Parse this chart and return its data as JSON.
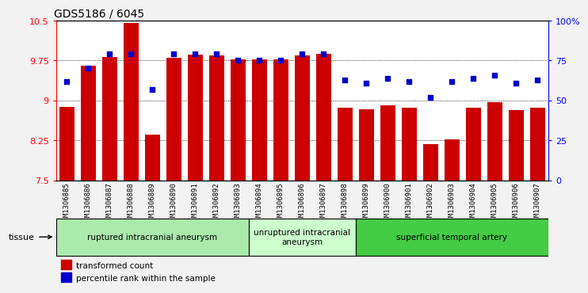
{
  "title": "GDS5186 / 6045",
  "samples": [
    "GSM1306885",
    "GSM1306886",
    "GSM1306887",
    "GSM1306888",
    "GSM1306889",
    "GSM1306890",
    "GSM1306891",
    "GSM1306892",
    "GSM1306893",
    "GSM1306894",
    "GSM1306895",
    "GSM1306896",
    "GSM1306897",
    "GSM1306898",
    "GSM1306899",
    "GSM1306900",
    "GSM1306901",
    "GSM1306902",
    "GSM1306903",
    "GSM1306904",
    "GSM1306905",
    "GSM1306906",
    "GSM1306907"
  ],
  "bar_values": [
    8.88,
    9.65,
    9.82,
    10.45,
    8.35,
    9.8,
    9.86,
    9.84,
    9.77,
    9.77,
    9.77,
    9.84,
    9.87,
    8.87,
    8.83,
    8.9,
    8.87,
    8.18,
    8.27,
    8.87,
    8.97,
    8.82,
    8.87
  ],
  "percentile_values": [
    62,
    70,
    79,
    79,
    57,
    79,
    79,
    79,
    75,
    75,
    75,
    79,
    79,
    63,
    61,
    64,
    62,
    52,
    62,
    64,
    66,
    61,
    63
  ],
  "bar_color": "#cc0000",
  "dot_color": "#0000cc",
  "ylim_left": [
    7.5,
    10.5
  ],
  "ylim_right": [
    0,
    100
  ],
  "yticks_left": [
    7.5,
    8.25,
    9.0,
    9.75,
    10.5
  ],
  "yticks_right": [
    0,
    25,
    50,
    75,
    100
  ],
  "ytick_labels_left": [
    "7.5",
    "8.25",
    "9",
    "9.75",
    "10.5"
  ],
  "ytick_labels_right": [
    "0",
    "25",
    "50",
    "75",
    "100%"
  ],
  "gridlines": [
    8.25,
    9.0,
    9.75
  ],
  "groups": [
    {
      "label": "ruptured intracranial aneurysm",
      "start": 0,
      "end": 8,
      "color": "#aaeaaa"
    },
    {
      "label": "unruptured intracranial\naneurysm",
      "start": 9,
      "end": 13,
      "color": "#ccffcc"
    },
    {
      "label": "superficial temporal artery",
      "start": 14,
      "end": 22,
      "color": "#44cc44"
    }
  ],
  "tissue_label": "tissue",
  "legend_bar_label": "transformed count",
  "legend_dot_label": "percentile rank within the sample",
  "background_color": "#f2f2f2",
  "plot_bg_color": "#ffffff"
}
